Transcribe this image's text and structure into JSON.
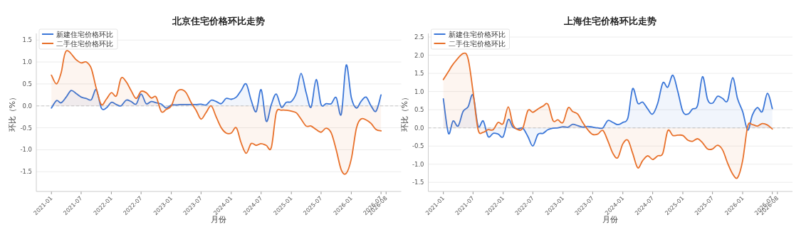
{
  "chart_data": [
    {
      "type": "area",
      "title": "北京住宅价格环比走势",
      "xlabel": "月份",
      "ylabel": "环比（%）",
      "legend": "top left",
      "grid": "y",
      "x": [
        "2021-01",
        "2021-02",
        "2021-03",
        "2021-04",
        "2021-05",
        "2021-06",
        "2021-07",
        "2021-08",
        "2021-09",
        "2021-10",
        "2021-11",
        "2021-12",
        "2022-01",
        "2022-02",
        "2022-03",
        "2022-04",
        "2022-05",
        "2022-06",
        "2022-07",
        "2022-08",
        "2022-09",
        "2022-10",
        "2022-11",
        "2022-12",
        "2023-01",
        "2023-02",
        "2023-03",
        "2023-04",
        "2023-05",
        "2023-06",
        "2023-07",
        "2023-08",
        "2023-09",
        "2023-10",
        "2023-11",
        "2023-12",
        "2024-01",
        "2024-02",
        "2024-03",
        "2024-04",
        "2024-05",
        "2024-06",
        "2024-07",
        "2024-08",
        "2024-09",
        "2024-10",
        "2024-11",
        "2024-12",
        "2025-01",
        "2025-02",
        "2025-03",
        "2025-04",
        "2025-05",
        "2025-06",
        "2025-07",
        "2025-08",
        "2025-09",
        "2025-10",
        "2025-11",
        "2025-12",
        "2026-01",
        "2026-02",
        "2026-03",
        "2026-04",
        "2026-05",
        "2026-06",
        "2026-07"
      ],
      "xlim": [
        "2020-10",
        "2026-11"
      ],
      "xticks": [
        "2021-01",
        "2021-07",
        "2022-01",
        "2022-07",
        "2023-01",
        "2023-07",
        "2024-01",
        "2024-07",
        "2025-01",
        "2025-07",
        "2026-01",
        "2026-07",
        "2026-08"
      ],
      "ylim": [
        -1.95,
        1.65
      ],
      "yticks": [
        -1.5,
        {
          "value": -1,
          "label": "-1.0"
        },
        -0.5,
        {
          "value": 0,
          "label": "0.0"
        },
        0.5,
        {
          "value": 1,
          "label": "1.0"
        },
        1.5
      ],
      "ref_lines": [
        {
          "axis": "y",
          "value": 0,
          "color": "#c8c8c8",
          "line_style": "dashed"
        }
      ],
      "series": [
        {
          "name": "新建住宅价格环比",
          "color": "#3a76d8",
          "values": [
            -0.05,
            0.12,
            0.07,
            0.2,
            0.35,
            0.28,
            0.2,
            0.17,
            0.14,
            0.37,
            -0.05,
            -0.05,
            0.08,
            0.03,
            0.0,
            0.13,
            0.1,
            0.04,
            0.27,
            0.05,
            0.1,
            0.07,
            0.04,
            -0.05,
            0.02,
            0.02,
            0.03,
            0.03,
            0.03,
            0.03,
            0.04,
            0.02,
            0.13,
            0.1,
            0.05,
            0.17,
            0.15,
            0.2,
            0.35,
            0.5,
            0.13,
            -0.13,
            0.37,
            -0.35,
            0.03,
            0.27,
            -0.03,
            0.08,
            0.1,
            0.3,
            0.74,
            0.3,
            -0.03,
            0.6,
            0.03,
            0.05,
            0.05,
            0.19,
            -0.19,
            0.93,
            0.19,
            -0.05,
            0.1,
            0.2,
            0.0,
            -0.12,
            0.25
          ]
        },
        {
          "name": "二手住宅价格环比",
          "color": "#e8702a",
          "values": [
            0.7,
            0.5,
            0.75,
            1.25,
            null,
            1.05,
            0.98,
            1.0,
            0.85,
            0.4,
            0.03,
            0.15,
            0.3,
            0.23,
            0.63,
            0.55,
            0.35,
            0.17,
            0.33,
            0.3,
            0.18,
            0.2,
            -0.13,
            -0.08,
            0.0,
            0.3,
            0.37,
            0.3,
            0.08,
            -0.1,
            -0.3,
            -0.15,
            0.0,
            -0.25,
            -0.5,
            -0.62,
            -0.62,
            -0.5,
            -0.84,
            -1.08,
            -0.86,
            -0.9,
            -0.86,
            -0.9,
            -0.95,
            -0.16,
            -0.1,
            -0.1,
            -0.12,
            -0.16,
            -0.3,
            -0.46,
            -0.46,
            -0.54,
            -0.6,
            -0.51,
            -0.62,
            -1.0,
            -1.46,
            -1.54,
            -1.21,
            -0.51,
            -0.3,
            -0.32,
            -0.4,
            -0.54,
            -0.57
          ]
        }
      ]
    },
    {
      "type": "area",
      "title": "上海住宅价格环比走势",
      "xlabel": "月份",
      "ylabel": "环比（%）",
      "legend": "top left",
      "grid": "y",
      "x": [
        "2021-01",
        "2021-02",
        "2021-03",
        "2021-04",
        "2021-05",
        "2021-06",
        "2021-07",
        "2021-08",
        "2021-09",
        "2021-10",
        "2021-11",
        "2021-12",
        "2022-01",
        "2022-02",
        "2022-03",
        "2022-04",
        "2022-05",
        "2022-06",
        "2022-07",
        "2022-08",
        "2022-09",
        "2022-10",
        "2022-11",
        "2022-12",
        "2023-01",
        "2023-02",
        "2023-03",
        "2023-04",
        "2023-05",
        "2023-06",
        "2023-07",
        "2023-08",
        "2023-09",
        "2023-10",
        "2023-11",
        "2023-12",
        "2024-01",
        "2024-02",
        "2024-03",
        "2024-04",
        "2024-05",
        "2024-06",
        "2024-07",
        "2024-08",
        "2024-09",
        "2024-10",
        "2024-11",
        "2024-12",
        "2025-01",
        "2025-02",
        "2025-03",
        "2025-04",
        "2025-05",
        "2025-06",
        "2025-07",
        "2025-08",
        "2025-09",
        "2025-10",
        "2025-11",
        "2025-12",
        "2026-01",
        "2026-02",
        "2026-03",
        "2026-04",
        "2026-05",
        "2026-06",
        "2026-07"
      ],
      "xlim": [
        "2020-10",
        "2026-11"
      ],
      "xticks": [
        "2021-01",
        "2021-07",
        "2022-01",
        "2022-07",
        "2023-01",
        "2023-07",
        "2024-01",
        "2024-07",
        "2025-01",
        "2025-07",
        "2026-01",
        "2026-07",
        "2026-08"
      ],
      "ylim": [
        -1.75,
        2.6
      ],
      "yticks": [
        -1.5,
        {
          "value": -1,
          "label": "-1.0"
        },
        -0.5,
        {
          "value": 0,
          "label": "0.0"
        },
        0.5,
        {
          "value": 1,
          "label": "1.0"
        },
        1.5,
        {
          "value": 2,
          "label": "2.0"
        },
        2.5
      ],
      "ref_lines": [
        {
          "axis": "y",
          "value": 0,
          "color": "#c8c8c8",
          "line_style": "dashed"
        }
      ],
      "series": [
        {
          "name": "新建住宅价格环比",
          "color": "#3a76d8",
          "values": [
            0.8,
            -0.15,
            0.19,
            0.05,
            0.45,
            0.58,
            0.9,
            0.05,
            0.19,
            -0.24,
            -0.15,
            -0.17,
            -0.24,
            0.23,
            0.02,
            -0.03,
            -0.01,
            -0.24,
            -0.5,
            -0.18,
            -0.15,
            -0.05,
            -0.01,
            0.0,
            0.03,
            0.02,
            0.1,
            0.06,
            0.02,
            0.04,
            0.02,
            0.0,
            0.0,
            0.2,
            0.15,
            0.09,
            0.15,
            0.28,
            1.08,
            0.68,
            0.71,
            0.52,
            0.38,
            0.68,
            1.24,
            1.12,
            1.45,
            1.01,
            0.45,
            0.38,
            0.52,
            0.62,
            1.41,
            0.78,
            0.68,
            0.87,
            0.81,
            0.75,
            1.38,
            0.8,
            0.45,
            -0.06,
            0.35,
            0.56,
            0.45,
            0.95,
            0.53
          ]
        },
        {
          "name": "二手住宅价格环比",
          "color": "#e8702a",
          "values": [
            1.33,
            1.55,
            1.75,
            null,
            2.05,
            1.9,
            1.0,
            -0.05,
            -0.12,
            -0.05,
            -0.05,
            0.15,
            0.12,
            0.58,
            0.1,
            -0.05,
            0.0,
            0.48,
            0.43,
            0.52,
            0.6,
            0.65,
            0.2,
            0.22,
            0.15,
            0.55,
            0.45,
            0.38,
            0.15,
            -0.05,
            -0.18,
            -0.17,
            -0.07,
            -0.35,
            -0.7,
            -0.82,
            -0.44,
            -0.34,
            -0.7,
            -1.1,
            -0.9,
            -0.77,
            -0.87,
            -0.77,
            -0.7,
            -0.08,
            -0.21,
            -0.2,
            -0.21,
            -0.34,
            -0.37,
            -0.3,
            -0.41,
            -0.58,
            -0.58,
            -0.48,
            -0.61,
            -0.97,
            -1.27,
            -1.37,
            -0.9,
            0.05,
            0.09,
            0.05,
            0.12,
            0.08,
            -0.03
          ]
        }
      ]
    }
  ]
}
